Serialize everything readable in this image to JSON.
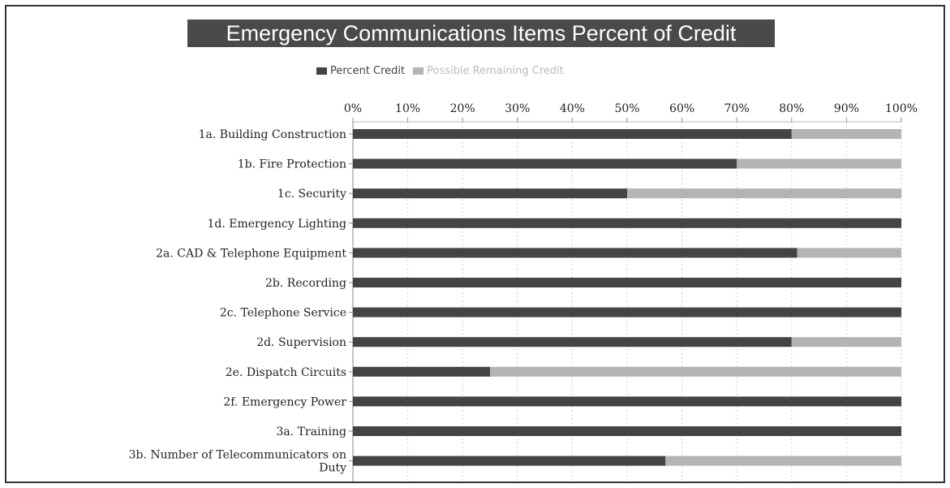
{
  "chart_data": {
    "type": "bar",
    "orientation": "horizontal",
    "stacked": true,
    "title": "Emergency Communications Items Percent of Credit",
    "legend_position": "top",
    "xlim": [
      0,
      100
    ],
    "x_ticks": [
      "0%",
      "10%",
      "20%",
      "30%",
      "40%",
      "50%",
      "60%",
      "70%",
      "80%",
      "90%",
      "100%"
    ],
    "grid": true,
    "categories": [
      "1a. Building Construction",
      "1b. Fire Protection",
      "1c. Security",
      "1d. Emergency Lighting",
      "2a. CAD & Telephone Equipment",
      "2b. Recording",
      "2c. Telephone Service",
      "2d. Supervision",
      "2e. Dispatch Circuits",
      "2f. Emergency Power",
      "3a. Training",
      "3b. Number of Telecommunicators on Duty"
    ],
    "category_lines": [
      [
        "1a. Building Construction"
      ],
      [
        "1b. Fire Protection"
      ],
      [
        "1c. Security"
      ],
      [
        "1d. Emergency Lighting"
      ],
      [
        "2a. CAD & Telephone Equipment"
      ],
      [
        "2b. Recording"
      ],
      [
        "2c. Telephone Service"
      ],
      [
        "2d. Supervision"
      ],
      [
        "2e. Dispatch Circuits"
      ],
      [
        "2f. Emergency Power"
      ],
      [
        "3a. Training"
      ],
      [
        "3b. Number of Telecommunicators on",
        "Duty"
      ]
    ],
    "series": [
      {
        "name": "Percent Credit",
        "color": "#444444",
        "values": [
          80,
          70,
          50,
          100,
          81,
          100,
          100,
          80,
          25,
          100,
          100,
          57
        ]
      },
      {
        "name": "Possible Remaining Credit",
        "color": "#b4b4b4",
        "values": [
          20,
          30,
          50,
          0,
          19,
          0,
          0,
          20,
          75,
          0,
          0,
          43
        ]
      }
    ]
  }
}
